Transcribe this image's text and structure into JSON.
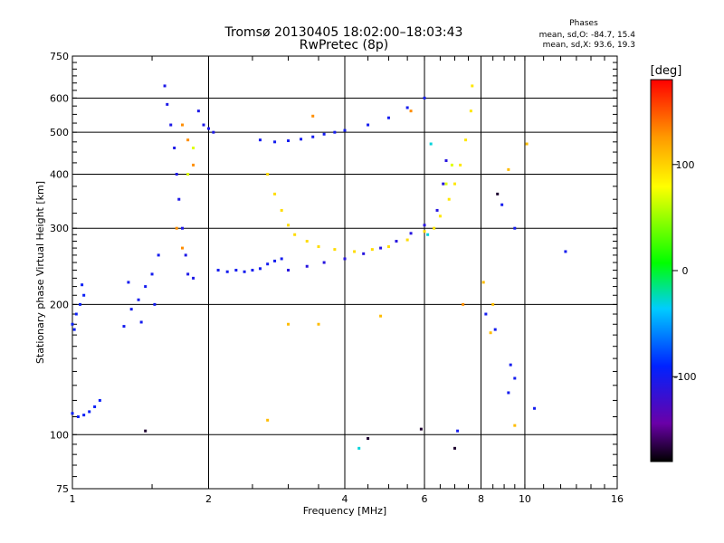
{
  "header": {
    "title": "Tromsø 20130405 18:02:00–18:03:43",
    "subtitle": "RwPretec (8p)",
    "stats_title": "Phases",
    "stats_o": "mean, sd,O: -84.7, 15.4",
    "stats_x": "mean, sd,X:  93.6, 19.3"
  },
  "chart_data": {
    "type": "scatter",
    "xlabel": "Frequency [MHz]",
    "ylabel": "Stationary phase Virtual Height [km]",
    "x_scale": "log",
    "y_scale": "log",
    "xlim": [
      1,
      16
    ],
    "ylim": [
      75,
      750
    ],
    "x_ticks": [
      {
        "v": 1,
        "label": "1"
      },
      {
        "v": 2,
        "label": "2"
      },
      {
        "v": 4,
        "label": "4"
      },
      {
        "v": 6,
        "label": "6"
      },
      {
        "v": 8,
        "label": "8"
      },
      {
        "v": 10,
        "label": "10"
      },
      {
        "v": 16,
        "label": "16"
      }
    ],
    "y_ticks": [
      {
        "v": 75,
        "label": "75"
      },
      {
        "v": 100,
        "label": "100"
      },
      {
        "v": 200,
        "label": "200"
      },
      {
        "v": 300,
        "label": "300"
      },
      {
        "v": 400,
        "label": "400"
      },
      {
        "v": 500,
        "label": "500"
      },
      {
        "v": 600,
        "label": "600"
      },
      {
        "v": 750,
        "label": "750"
      }
    ],
    "grid": true,
    "colorbar": {
      "label": "[deg]",
      "range": [
        -180,
        180
      ],
      "ticks": [
        {
          "v": 100,
          "label": "100"
        },
        {
          "v": 0,
          "label": "0"
        },
        {
          "v": -100,
          "label": "-100"
        }
      ]
    },
    "series": [
      {
        "phase": -95,
        "points": [
          [
            1.0,
            180
          ],
          [
            1.02,
            190
          ],
          [
            1.04,
            200
          ],
          [
            1.06,
            210
          ],
          [
            1.05,
            222
          ],
          [
            1.01,
            175
          ]
        ]
      },
      {
        "phase": -95,
        "points": [
          [
            1.0,
            112
          ],
          [
            1.03,
            110
          ],
          [
            1.06,
            111
          ],
          [
            1.09,
            113
          ],
          [
            1.12,
            116
          ],
          [
            1.15,
            120
          ]
        ]
      },
      {
        "phase": -100,
        "points": [
          [
            1.3,
            178
          ],
          [
            1.35,
            195
          ],
          [
            1.4,
            205
          ],
          [
            1.45,
            220
          ],
          [
            1.5,
            235
          ],
          [
            1.55,
            260
          ],
          [
            1.33,
            225
          ],
          [
            1.42,
            182
          ],
          [
            1.52,
            200
          ]
        ]
      },
      {
        "phase": -105,
        "points": [
          [
            1.6,
            640
          ],
          [
            1.62,
            580
          ],
          [
            1.65,
            520
          ],
          [
            1.68,
            460
          ],
          [
            1.7,
            400
          ],
          [
            1.72,
            350
          ],
          [
            1.75,
            300
          ],
          [
            1.78,
            260
          ],
          [
            1.8,
            235
          ],
          [
            1.85,
            230
          ],
          [
            1.9,
            560
          ],
          [
            1.95,
            520
          ],
          [
            2.0,
            510
          ],
          [
            2.05,
            500
          ]
        ]
      },
      {
        "phase": -100,
        "points": [
          [
            2.1,
            240
          ],
          [
            2.2,
            238
          ],
          [
            2.3,
            240
          ],
          [
            2.4,
            238
          ],
          [
            2.5,
            240
          ],
          [
            2.6,
            242
          ],
          [
            2.7,
            248
          ],
          [
            2.8,
            252
          ],
          [
            2.9,
            255
          ]
        ]
      },
      {
        "phase": -100,
        "points": [
          [
            2.6,
            480
          ],
          [
            2.8,
            475
          ],
          [
            3.0,
            478
          ],
          [
            3.2,
            482
          ],
          [
            3.4,
            488
          ],
          [
            3.6,
            495
          ],
          [
            3.8,
            500
          ],
          [
            4.0,
            505
          ],
          [
            4.5,
            520
          ],
          [
            5.0,
            540
          ],
          [
            5.5,
            570
          ],
          [
            6.0,
            600
          ]
        ]
      },
      {
        "phase": -110,
        "points": [
          [
            3.0,
            240
          ],
          [
            3.3,
            245
          ],
          [
            3.6,
            250
          ],
          [
            4.0,
            255
          ],
          [
            4.4,
            262
          ],
          [
            4.8,
            270
          ],
          [
            5.2,
            280
          ],
          [
            5.6,
            292
          ],
          [
            6.0,
            305
          ],
          [
            6.4,
            330
          ],
          [
            6.6,
            380
          ],
          [
            6.7,
            430
          ]
        ]
      },
      {
        "phase": 95,
        "points": [
          [
            2.7,
            400
          ],
          [
            2.8,
            360
          ],
          [
            2.9,
            330
          ],
          [
            3.0,
            305
          ],
          [
            3.1,
            290
          ],
          [
            3.3,
            280
          ],
          [
            3.5,
            272
          ],
          [
            3.8,
            268
          ],
          [
            4.2,
            265
          ],
          [
            4.6,
            268
          ],
          [
            5.0,
            272
          ],
          [
            5.5,
            282
          ],
          [
            6.0,
            295
          ]
        ]
      },
      {
        "phase": 90,
        "points": [
          [
            6.3,
            300
          ],
          [
            6.5,
            320
          ],
          [
            6.8,
            350
          ],
          [
            7.0,
            380
          ],
          [
            7.2,
            420
          ],
          [
            7.4,
            480
          ],
          [
            7.6,
            560
          ],
          [
            7.65,
            640
          ]
        ]
      },
      {
        "phase": 130,
        "points": [
          [
            1.75,
            520
          ],
          [
            1.8,
            480
          ],
          [
            1.85,
            420
          ],
          [
            1.7,
            300
          ],
          [
            1.75,
            270
          ],
          [
            3.4,
            545
          ],
          [
            5.6,
            560
          ],
          [
            7.3,
            200
          ]
        ]
      },
      {
        "phase": 70,
        "points": [
          [
            1.8,
            400
          ],
          [
            1.85,
            460
          ],
          [
            6.7,
            380
          ],
          [
            6.9,
            420
          ]
        ]
      },
      {
        "phase": -100,
        "points": [
          [
            8.2,
            190
          ],
          [
            8.6,
            175
          ],
          [
            9.3,
            145
          ],
          [
            9.2,
            125
          ],
          [
            9.5,
            135
          ],
          [
            10.5,
            115
          ],
          [
            12.3,
            265
          ],
          [
            8.9,
            340
          ],
          [
            9.5,
            300
          ],
          [
            7.1,
            102
          ]
        ]
      },
      {
        "phase": 110,
        "points": [
          [
            9.2,
            410
          ],
          [
            10.1,
            470
          ],
          [
            8.5,
            200
          ],
          [
            9.5,
            105
          ],
          [
            8.1,
            225
          ],
          [
            2.7,
            108
          ],
          [
            3.0,
            180
          ],
          [
            3.5,
            180
          ],
          [
            4.8,
            188
          ],
          [
            8.4,
            172
          ]
        ]
      },
      {
        "phase": -170,
        "points": [
          [
            1.45,
            102
          ],
          [
            5.9,
            103
          ],
          [
            4.5,
            98
          ],
          [
            7.0,
            93
          ],
          [
            8.7,
            360
          ]
        ]
      },
      {
        "phase": -30,
        "points": [
          [
            4.3,
            93
          ],
          [
            6.2,
            470
          ],
          [
            6.1,
            290
          ]
        ]
      }
    ]
  }
}
